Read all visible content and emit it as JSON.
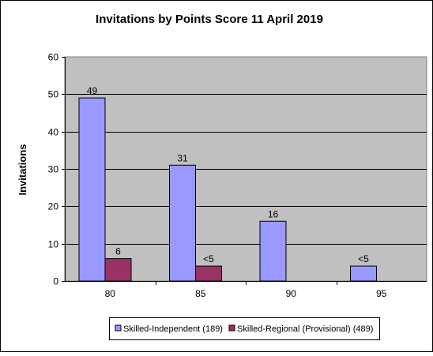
{
  "chart_data": {
    "type": "bar",
    "title": "Invitations by Points Score 11 April 2019",
    "xlabel": "",
    "ylabel": "Invitations",
    "categories": [
      "80",
      "85",
      "90",
      "95"
    ],
    "ylim": [
      0,
      60
    ],
    "yticks": [
      0,
      10,
      20,
      30,
      40,
      50,
      60
    ],
    "grid": true,
    "legend_position": "bottom",
    "plot_background": "#c0c0c0",
    "series": [
      {
        "name": "Skilled-Independent (189)",
        "color": "#9999ff",
        "values": [
          49,
          31,
          16,
          4
        ],
        "labels": [
          "49",
          "31",
          "16",
          "<5"
        ]
      },
      {
        "name": "Skilled-Regional (Provisional) (489)",
        "color": "#993366",
        "values": [
          6,
          4,
          null,
          null
        ],
        "labels": [
          "6",
          "<5",
          "",
          ""
        ]
      }
    ]
  }
}
